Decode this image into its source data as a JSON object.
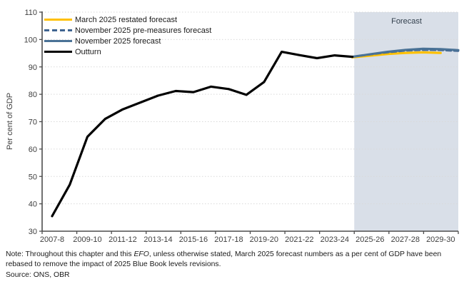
{
  "chart_data": {
    "type": "line",
    "ylabel": "Per cent of GDP",
    "ylim": [
      30,
      110
    ],
    "ytick_step": 10,
    "grid": "dotted-horizontal",
    "legend_position": "top-left-inside",
    "x_tick_labels": [
      "2007-8",
      "2009-10",
      "2011-12",
      "2013-14",
      "2015-16",
      "2017-18",
      "2019-20",
      "2021-22",
      "2023-24",
      "2025-26",
      "2027-28",
      "2029-30"
    ],
    "categories": [
      "2007-08",
      "2008-09",
      "2009-10",
      "2010-11",
      "2011-12",
      "2012-13",
      "2013-14",
      "2014-15",
      "2015-16",
      "2016-17",
      "2017-18",
      "2018-19",
      "2019-20",
      "2020-21",
      "2021-22",
      "2022-23",
      "2023-24",
      "2024-25",
      "2025-26",
      "2026-27",
      "2027-28",
      "2028-29",
      "2029-30",
      "2030-31"
    ],
    "forecast_region": {
      "start_category": "2025-26",
      "label": "Forecast",
      "fill": "#d9dfe8"
    },
    "series": [
      {
        "name": "March 2025 restated forecast",
        "color": "#ffc000",
        "style": "solid",
        "values": [
          null,
          null,
          null,
          null,
          null,
          null,
          null,
          null,
          null,
          null,
          null,
          null,
          null,
          null,
          null,
          null,
          null,
          93.5,
          94.1,
          94.7,
          95.1,
          95.3,
          95.1,
          null
        ]
      },
      {
        "name": "November 2025 pre-measures forecast",
        "color": "#3f6490",
        "style": "dashed",
        "values": [
          null,
          null,
          null,
          null,
          null,
          null,
          null,
          null,
          null,
          null,
          null,
          null,
          null,
          null,
          null,
          null,
          null,
          93.7,
          94.5,
          95.3,
          95.9,
          96.2,
          96.1,
          95.8
        ]
      },
      {
        "name": "November 2025 forecast",
        "color": "#4a7296",
        "style": "solid",
        "values": [
          null,
          null,
          null,
          null,
          null,
          null,
          null,
          null,
          null,
          null,
          null,
          null,
          null,
          null,
          null,
          null,
          null,
          93.7,
          94.6,
          95.5,
          96.2,
          96.6,
          96.5,
          96.1
        ]
      },
      {
        "name": "Outturn",
        "color": "#000000",
        "style": "solid",
        "values": [
          35.5,
          47.0,
          64.5,
          71.0,
          74.5,
          77.0,
          79.5,
          81.2,
          80.8,
          82.8,
          81.9,
          79.8,
          84.5,
          95.5,
          94.3,
          93.2,
          94.2,
          93.7,
          null,
          null,
          null,
          null,
          null,
          null
        ]
      }
    ]
  },
  "note": {
    "prefix": "Note: Throughout this chapter and this ",
    "italic": "EFO",
    "suffix": ", unless otherwise stated, March 2025 forecast numbers as a per cent of GDP have been rebased to remove the impact of 2025 Blue Book levels revisions.",
    "source": "Source: ONS, OBR"
  }
}
